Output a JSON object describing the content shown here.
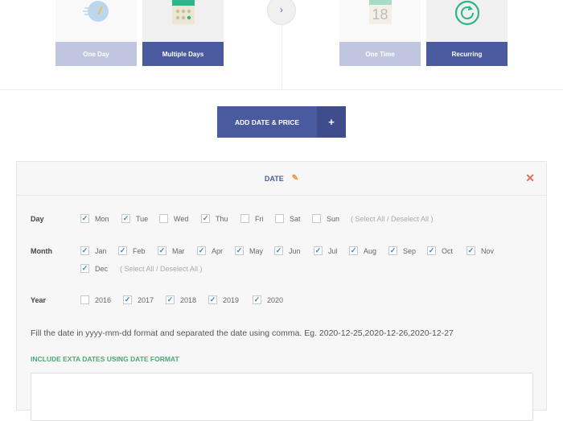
{
  "duration": {
    "options": [
      {
        "label": "One Day",
        "selected": false,
        "icon": "stopwatch-icon"
      },
      {
        "label": "Multiple Days",
        "selected": true,
        "icon": "calendar-grid-icon"
      }
    ]
  },
  "frequency": {
    "options": [
      {
        "label": "One Time",
        "selected": false,
        "icon": "calendar-date-icon",
        "date_number": "18"
      },
      {
        "label": "Recurring",
        "selected": true,
        "icon": "recurring-icon"
      }
    ]
  },
  "add_button": {
    "label": "ADD DATE & PRICE",
    "plus": "+"
  },
  "panel": {
    "title": "DATE",
    "day": {
      "label": "Day",
      "items": [
        {
          "label": "Mon",
          "checked": true
        },
        {
          "label": "Tue",
          "checked": true
        },
        {
          "label": "Wed",
          "checked": false
        },
        {
          "label": "Thu",
          "checked": true
        },
        {
          "label": "Fri",
          "checked": false
        },
        {
          "label": "Sat",
          "checked": false
        },
        {
          "label": "Sun",
          "checked": false
        }
      ],
      "select_all": "( Select All / Deselect All )"
    },
    "month": {
      "label": "Month",
      "items": [
        {
          "label": "Jan",
          "checked": true
        },
        {
          "label": "Feb",
          "checked": true
        },
        {
          "label": "Mar",
          "checked": true
        },
        {
          "label": "Apr",
          "checked": true
        },
        {
          "label": "May",
          "checked": true
        },
        {
          "label": "Jun",
          "checked": true
        },
        {
          "label": "Jul",
          "checked": true
        },
        {
          "label": "Aug",
          "checked": true
        },
        {
          "label": "Sep",
          "checked": true
        },
        {
          "label": "Oct",
          "checked": true
        },
        {
          "label": "Nov",
          "checked": true
        },
        {
          "label": "Dec",
          "checked": true
        }
      ],
      "select_all": "( Select All / Deselect All )"
    },
    "year": {
      "label": "Year",
      "items": [
        {
          "label": "2016",
          "checked": false
        },
        {
          "label": "2017",
          "checked": true
        },
        {
          "label": "2018",
          "checked": true
        },
        {
          "label": "2019",
          "checked": true
        },
        {
          "label": "2020",
          "checked": true
        }
      ]
    },
    "hint": "Fill the date in yyyy-mm-dd format and separated the date using comma. Eg. 2020-12-25,2020-12-26,2020-12-27",
    "extra_label": "INCLUDE EXTA DATES USING DATE FORMAT",
    "extra_value": ""
  }
}
